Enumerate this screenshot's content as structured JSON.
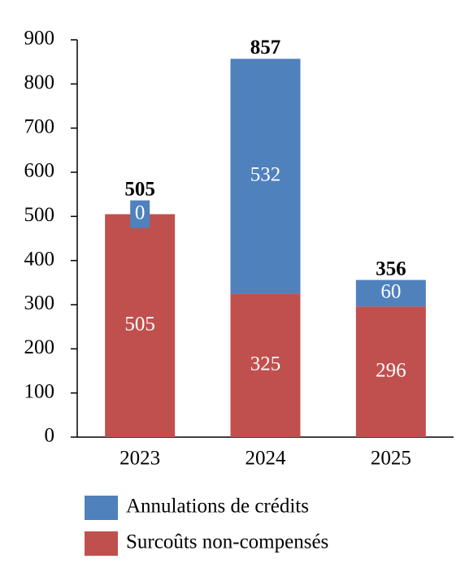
{
  "chart_data": {
    "type": "stacked_bar",
    "categories": [
      "2023",
      "2024",
      "2025"
    ],
    "series": [
      {
        "name": "Surcoûts non-compensés",
        "color": "#c0504d",
        "values": [
          505,
          325,
          296
        ]
      },
      {
        "name": "Annulations de crédits",
        "color": "#4f81bd",
        "values": [
          0,
          532,
          60
        ]
      }
    ],
    "totals": [
      505,
      857,
      356
    ],
    "ylim": [
      0,
      900
    ],
    "yticks": [
      0,
      100,
      200,
      300,
      400,
      500,
      600,
      700,
      800,
      900
    ],
    "grid": false
  }
}
